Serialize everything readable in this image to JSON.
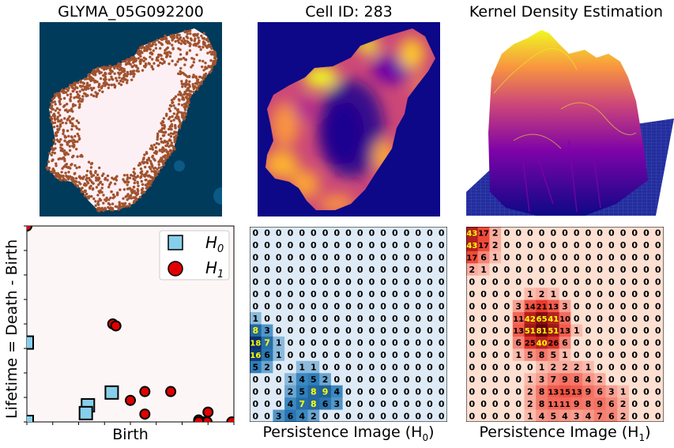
{
  "panels": {
    "spatial": {
      "title": "GLYMA_05G092200"
    },
    "density2d": {
      "title": "Cell ID: 283"
    },
    "kde3d": {
      "title": "Kernel Density Estimation"
    },
    "diagram": {
      "ylabel": "Lifetime = Death - Birth",
      "xlabel": "Birth"
    },
    "pi_h0": {
      "xlabel_main": "Persistence Image (H",
      "xlabel_sub": "0",
      "xlabel_end": ")"
    },
    "pi_h1": {
      "xlabel_main": "Persistence Image (H",
      "xlabel_sub": "1",
      "xlabel_end": ")"
    }
  },
  "colors": {
    "background_dark": "#003b5c",
    "cell_fill": "#fdf0f5",
    "transcript": "#a0522d",
    "h0_marker": "#87ceeb",
    "h1_marker": "#e00000",
    "h0_cmap_low": "#deebf7",
    "h0_cmap_high": "#3182bd",
    "h1_cmap_low": "#fde0d2",
    "h1_cmap_high": "#67000d",
    "plasma_low": "#0d0887",
    "plasma_high": "#f0f921"
  },
  "chart_data": [
    {
      "type": "scatter",
      "xlabel": "Birth",
      "ylabel": "Lifetime = Death - Birth",
      "legend": {
        "placement": "top-right",
        "entries": [
          {
            "name": "H",
            "sub": "0",
            "marker": "square"
          },
          {
            "name": "H",
            "sub": "1",
            "marker": "circle"
          }
        ]
      },
      "xlim": [
        0,
        1
      ],
      "ylim": [
        0,
        1
      ],
      "series": [
        {
          "name": "H0",
          "points": [
            [
              0.0,
              0.405
            ],
            [
              0.0,
              0.0
            ],
            [
              0.295,
              0.085
            ],
            [
              0.285,
              0.045
            ],
            [
              0.41,
              0.15
            ]
          ]
        },
        {
          "name": "H1",
          "points": [
            [
              0.0,
              1.0
            ],
            [
              0.415,
              0.5
            ],
            [
              0.43,
              0.49
            ],
            [
              0.5,
              0.11
            ],
            [
              0.57,
              0.155
            ],
            [
              0.57,
              0.04
            ],
            [
              0.695,
              0.155
            ],
            [
              0.83,
              0.01
            ],
            [
              0.85,
              0.0
            ],
            [
              0.875,
              0.05
            ],
            [
              0.87,
              0.0
            ],
            [
              0.99,
              0.0
            ],
            [
              0.83,
              0.0
            ]
          ]
        }
      ]
    },
    {
      "type": "heatmap",
      "name": "Persistence Image (H0)",
      "rows": [
        [
          0,
          0,
          0,
          0,
          0,
          0,
          0,
          0,
          0,
          0,
          0,
          0,
          0,
          0,
          0,
          0,
          0
        ],
        [
          0,
          0,
          0,
          0,
          0,
          0,
          0,
          0,
          0,
          0,
          0,
          0,
          0,
          0,
          0,
          0,
          0
        ],
        [
          0,
          0,
          0,
          0,
          0,
          0,
          0,
          0,
          0,
          0,
          0,
          0,
          0,
          0,
          0,
          0,
          0
        ],
        [
          0,
          0,
          0,
          0,
          0,
          0,
          0,
          0,
          0,
          0,
          0,
          0,
          0,
          0,
          0,
          0,
          0
        ],
        [
          0,
          0,
          0,
          0,
          0,
          0,
          0,
          0,
          0,
          0,
          0,
          0,
          0,
          0,
          0,
          0,
          0
        ],
        [
          0,
          0,
          0,
          0,
          0,
          0,
          0,
          0,
          0,
          0,
          0,
          0,
          0,
          0,
          0,
          0,
          0
        ],
        [
          0,
          0,
          0,
          0,
          0,
          0,
          0,
          0,
          0,
          0,
          0,
          0,
          0,
          0,
          0,
          0,
          0
        ],
        [
          1,
          0,
          0,
          0,
          0,
          0,
          0,
          0,
          0,
          0,
          0,
          0,
          0,
          0,
          0,
          0,
          0
        ],
        [
          8,
          3,
          0,
          0,
          0,
          0,
          0,
          0,
          0,
          0,
          0,
          0,
          0,
          0,
          0,
          0,
          0
        ],
        [
          18,
          7,
          1,
          0,
          0,
          0,
          0,
          0,
          0,
          0,
          0,
          0,
          0,
          0,
          0,
          0,
          0
        ],
        [
          16,
          6,
          1,
          0,
          0,
          0,
          0,
          0,
          0,
          0,
          0,
          0,
          0,
          0,
          0,
          0,
          0
        ],
        [
          5,
          2,
          0,
          0,
          1,
          1,
          0,
          0,
          0,
          0,
          0,
          0,
          0,
          0,
          0,
          0,
          0
        ],
        [
          0,
          0,
          0,
          1,
          4,
          5,
          2,
          0,
          0,
          0,
          0,
          0,
          0,
          0,
          0,
          0,
          0
        ],
        [
          0,
          0,
          0,
          2,
          5,
          8,
          9,
          4,
          0,
          0,
          0,
          0,
          0,
          0,
          0,
          0,
          0
        ],
        [
          0,
          0,
          0,
          4,
          7,
          8,
          6,
          3,
          0,
          0,
          0,
          0,
          0,
          0,
          0,
          0,
          0
        ],
        [
          0,
          0,
          3,
          6,
          4,
          2,
          0,
          0,
          0,
          0,
          0,
          0,
          0,
          0,
          0,
          0,
          0
        ]
      ]
    },
    {
      "type": "heatmap",
      "name": "Persistence Image (H1)",
      "rows": [
        [
          43,
          17,
          2,
          0,
          0,
          0,
          0,
          0,
          0,
          0,
          0,
          0,
          0,
          0,
          0,
          0,
          0
        ],
        [
          43,
          17,
          2,
          0,
          0,
          0,
          0,
          0,
          0,
          0,
          0,
          0,
          0,
          0,
          0,
          0,
          0
        ],
        [
          17,
          6,
          1,
          0,
          0,
          0,
          0,
          0,
          0,
          0,
          0,
          0,
          0,
          0,
          0,
          0,
          0
        ],
        [
          2,
          1,
          0,
          0,
          0,
          0,
          0,
          0,
          0,
          0,
          0,
          0,
          0,
          0,
          0,
          0,
          0
        ],
        [
          0,
          0,
          0,
          0,
          0,
          0,
          0,
          0,
          0,
          0,
          0,
          0,
          0,
          0,
          0,
          0,
          0
        ],
        [
          0,
          0,
          0,
          0,
          0,
          1,
          2,
          1,
          0,
          0,
          0,
          0,
          0,
          0,
          0,
          0,
          0
        ],
        [
          0,
          0,
          0,
          0,
          3,
          14,
          21,
          13,
          3,
          0,
          0,
          0,
          0,
          0,
          0,
          0,
          0
        ],
        [
          0,
          0,
          0,
          0,
          11,
          42,
          65,
          41,
          10,
          0,
          0,
          0,
          0,
          0,
          0,
          0,
          0
        ],
        [
          0,
          0,
          0,
          0,
          13,
          51,
          81,
          51,
          13,
          1,
          0,
          0,
          0,
          0,
          0,
          0,
          0
        ],
        [
          0,
          0,
          0,
          0,
          6,
          25,
          40,
          26,
          6,
          0,
          0,
          0,
          0,
          0,
          0,
          0,
          0
        ],
        [
          0,
          0,
          0,
          0,
          1,
          5,
          8,
          5,
          1,
          0,
          0,
          0,
          0,
          0,
          0,
          0,
          0
        ],
        [
          0,
          0,
          0,
          0,
          0,
          0,
          1,
          2,
          2,
          2,
          1,
          0,
          0,
          0,
          0,
          0,
          0
        ],
        [
          0,
          0,
          0,
          0,
          0,
          1,
          3,
          7,
          9,
          8,
          4,
          2,
          0,
          0,
          0,
          0,
          0
        ],
        [
          0,
          0,
          0,
          0,
          0,
          2,
          8,
          13,
          15,
          13,
          9,
          6,
          3,
          1,
          0,
          0,
          0
        ],
        [
          0,
          0,
          0,
          0,
          0,
          2,
          8,
          11,
          11,
          9,
          8,
          9,
          6,
          2,
          0,
          0,
          0
        ],
        [
          0,
          0,
          0,
          0,
          0,
          1,
          4,
          5,
          4,
          3,
          4,
          7,
          6,
          2,
          0,
          0,
          0
        ]
      ]
    }
  ]
}
